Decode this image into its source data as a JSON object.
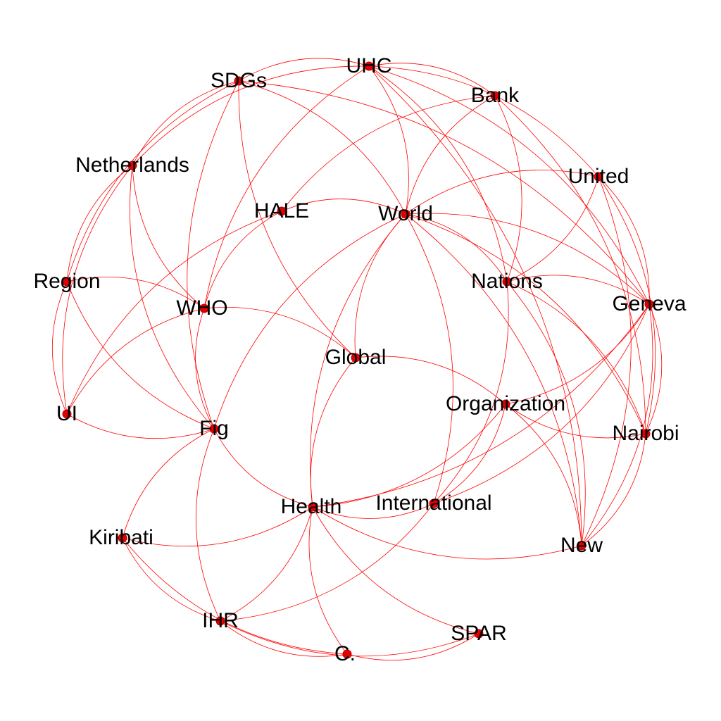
{
  "graph": {
    "edge_color": "#ff0000",
    "node_color": "#e00000",
    "label_color": "#000000",
    "nodes": [
      {
        "id": "UHC",
        "label": "UHC"
      },
      {
        "id": "SDGs",
        "label": "SDGs"
      },
      {
        "id": "Bank",
        "label": "Bank"
      },
      {
        "id": "Netherlands",
        "label": "Netherlands"
      },
      {
        "id": "United",
        "label": "United"
      },
      {
        "id": "HALE",
        "label": "HALE"
      },
      {
        "id": "World",
        "label": "World"
      },
      {
        "id": "Region",
        "label": "Region"
      },
      {
        "id": "Nations",
        "label": "Nations"
      },
      {
        "id": "WHO",
        "label": "WHO"
      },
      {
        "id": "Geneva",
        "label": "Geneva"
      },
      {
        "id": "Global",
        "label": "Global"
      },
      {
        "id": "UI",
        "label": "UI"
      },
      {
        "id": "Organization",
        "label": "Organization"
      },
      {
        "id": "Fig",
        "label": "Fig"
      },
      {
        "id": "Nairobi",
        "label": "Nairobi"
      },
      {
        "id": "Health",
        "label": "Health"
      },
      {
        "id": "International",
        "label": "International"
      },
      {
        "id": "Kiribati",
        "label": "Kiribati"
      },
      {
        "id": "New",
        "label": "New"
      },
      {
        "id": "IHR",
        "label": "IHR"
      },
      {
        "id": "SPAR",
        "label": "SPAR"
      },
      {
        "id": "C",
        "label": "C."
      }
    ],
    "edges": [
      [
        "UHC",
        "SDGs"
      ],
      [
        "UHC",
        "Bank"
      ],
      [
        "UHC",
        "United"
      ],
      [
        "UHC",
        "World"
      ],
      [
        "UHC",
        "Nations"
      ],
      [
        "UHC",
        "Netherlands"
      ],
      [
        "UHC",
        "WHO"
      ],
      [
        "UHC",
        "Geneva"
      ],
      [
        "UHC",
        "New"
      ],
      [
        "SDGs",
        "Netherlands"
      ],
      [
        "SDGs",
        "World"
      ],
      [
        "SDGs",
        "Global"
      ],
      [
        "SDGs",
        "Fig"
      ],
      [
        "SDGs",
        "Region"
      ],
      [
        "SDGs",
        "Geneva"
      ],
      [
        "Bank",
        "World"
      ],
      [
        "Bank",
        "HALE"
      ],
      [
        "Bank",
        "Nairobi"
      ],
      [
        "Bank",
        "Nations"
      ],
      [
        "Netherlands",
        "Region"
      ],
      [
        "Netherlands",
        "WHO"
      ],
      [
        "Netherlands",
        "Fig"
      ],
      [
        "Netherlands",
        "UI"
      ],
      [
        "United",
        "World"
      ],
      [
        "United",
        "Nations"
      ],
      [
        "United",
        "Geneva"
      ],
      [
        "United",
        "Nairobi"
      ],
      [
        "United",
        "New"
      ],
      [
        "HALE",
        "World"
      ],
      [
        "HALE",
        "WHO"
      ],
      [
        "HALE",
        "UI"
      ],
      [
        "World",
        "Nations"
      ],
      [
        "World",
        "Geneva"
      ],
      [
        "World",
        "Global"
      ],
      [
        "World",
        "Health"
      ],
      [
        "World",
        "Fig"
      ],
      [
        "World",
        "New"
      ],
      [
        "World",
        "International"
      ],
      [
        "World",
        "Nairobi"
      ],
      [
        "Region",
        "WHO"
      ],
      [
        "Region",
        "Fig"
      ],
      [
        "Region",
        "UI"
      ],
      [
        "Nations",
        "Geneva"
      ],
      [
        "Nations",
        "New"
      ],
      [
        "Nations",
        "Nairobi"
      ],
      [
        "Nations",
        "International"
      ],
      [
        "WHO",
        "Global"
      ],
      [
        "WHO",
        "Fig"
      ],
      [
        "WHO",
        "UI"
      ],
      [
        "Geneva",
        "Nairobi"
      ],
      [
        "Geneva",
        "New"
      ],
      [
        "Geneva",
        "Organization"
      ],
      [
        "Geneva",
        "Health"
      ],
      [
        "Geneva",
        "International"
      ],
      [
        "Global",
        "Health"
      ],
      [
        "Global",
        "Organization"
      ],
      [
        "UI",
        "Fig"
      ],
      [
        "Organization",
        "Health"
      ],
      [
        "Organization",
        "Nairobi"
      ],
      [
        "Organization",
        "New"
      ],
      [
        "Organization",
        "International"
      ],
      [
        "Fig",
        "Kiribati"
      ],
      [
        "Fig",
        "IHR"
      ],
      [
        "Fig",
        "Health"
      ],
      [
        "Health",
        "International"
      ],
      [
        "Health",
        "Kiribati"
      ],
      [
        "Health",
        "IHR"
      ],
      [
        "Health",
        "C"
      ],
      [
        "Health",
        "SPAR"
      ],
      [
        "Health",
        "New"
      ],
      [
        "International",
        "IHR"
      ],
      [
        "Kiribati",
        "IHR"
      ],
      [
        "Kiribati",
        "C"
      ],
      [
        "Nairobi",
        "New"
      ],
      [
        "IHR",
        "C"
      ],
      [
        "IHR",
        "SPAR"
      ],
      [
        "C",
        "SPAR"
      ]
    ]
  }
}
